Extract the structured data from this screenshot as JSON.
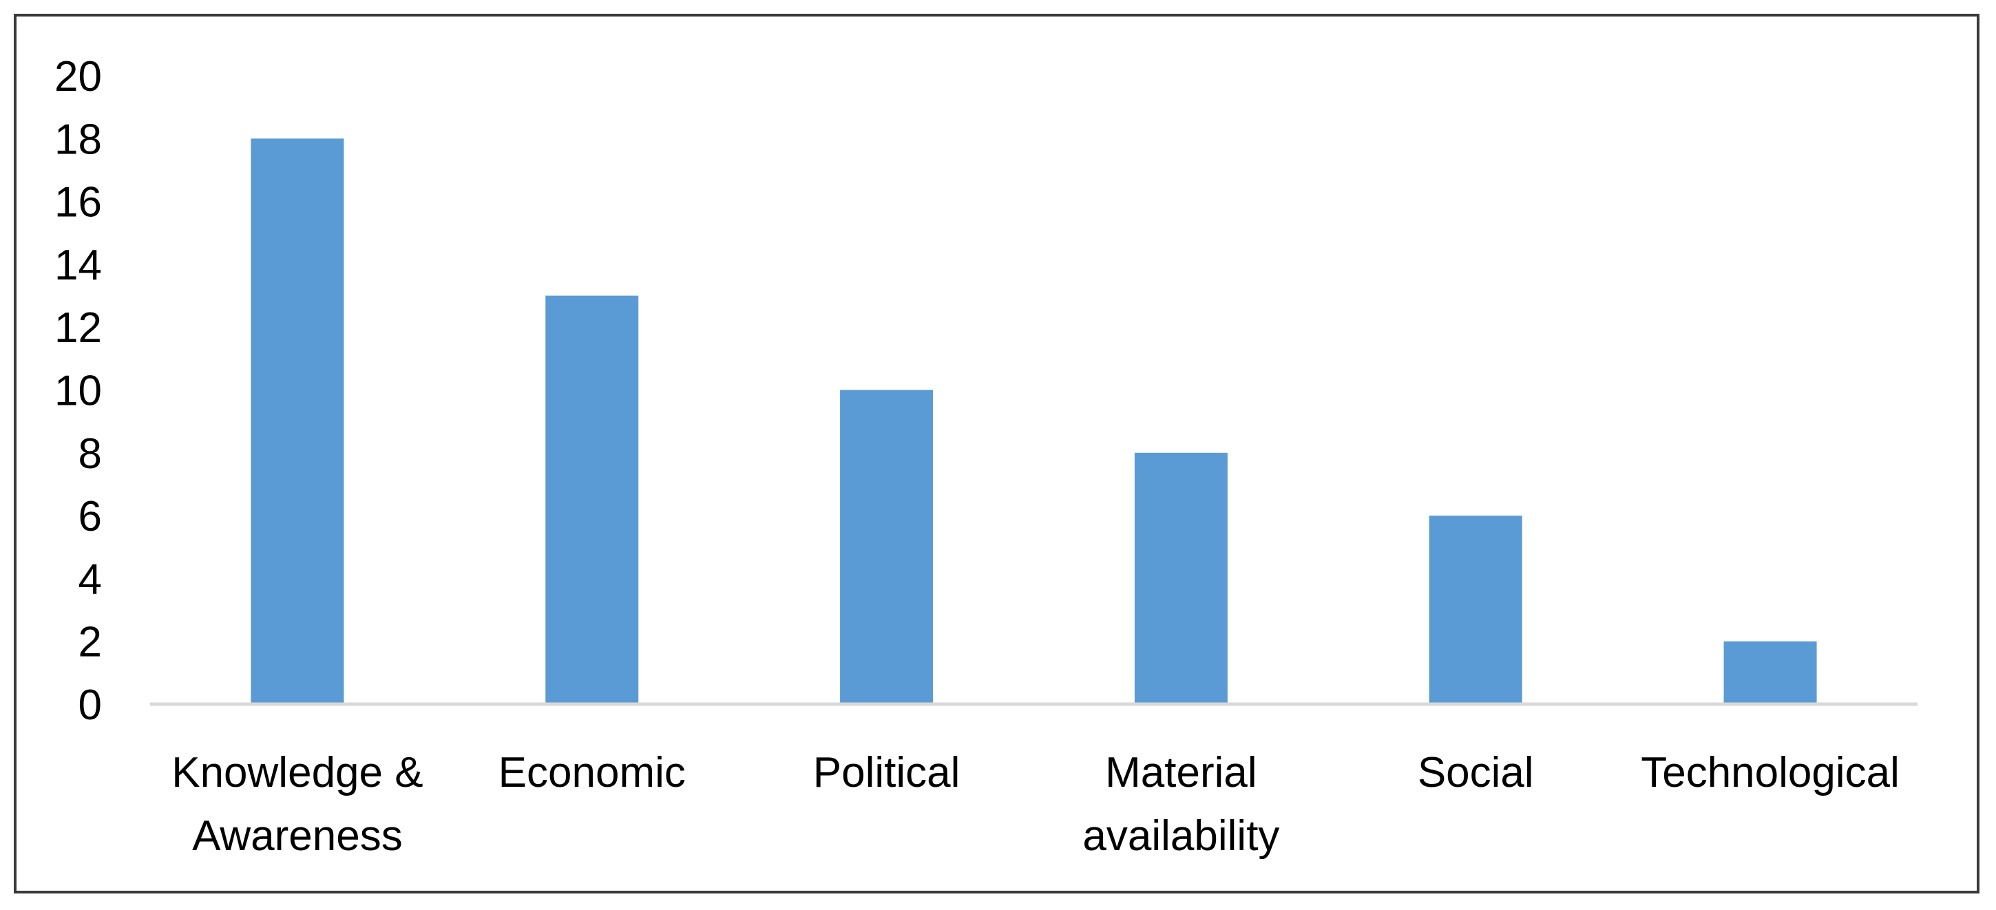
{
  "chart_data": {
    "type": "bar",
    "title": "",
    "xlabel": "",
    "ylabel": "",
    "categories": [
      [
        "Knowledge &",
        "Awareness"
      ],
      [
        "Economic"
      ],
      [
        "Political"
      ],
      [
        "Material",
        "availability"
      ],
      [
        "Social"
      ],
      [
        "Technological"
      ]
    ],
    "values": [
      18,
      13,
      10,
      8,
      6,
      2
    ],
    "ylim": [
      0,
      20
    ],
    "yticks": [
      "0",
      "2",
      "4",
      "6",
      "8",
      "10",
      "12",
      "14",
      "16",
      "18",
      "20"
    ],
    "grid": false,
    "legend": "none",
    "bar_color": "#5b9bd5",
    "axis_color": "#d9d9d9"
  }
}
